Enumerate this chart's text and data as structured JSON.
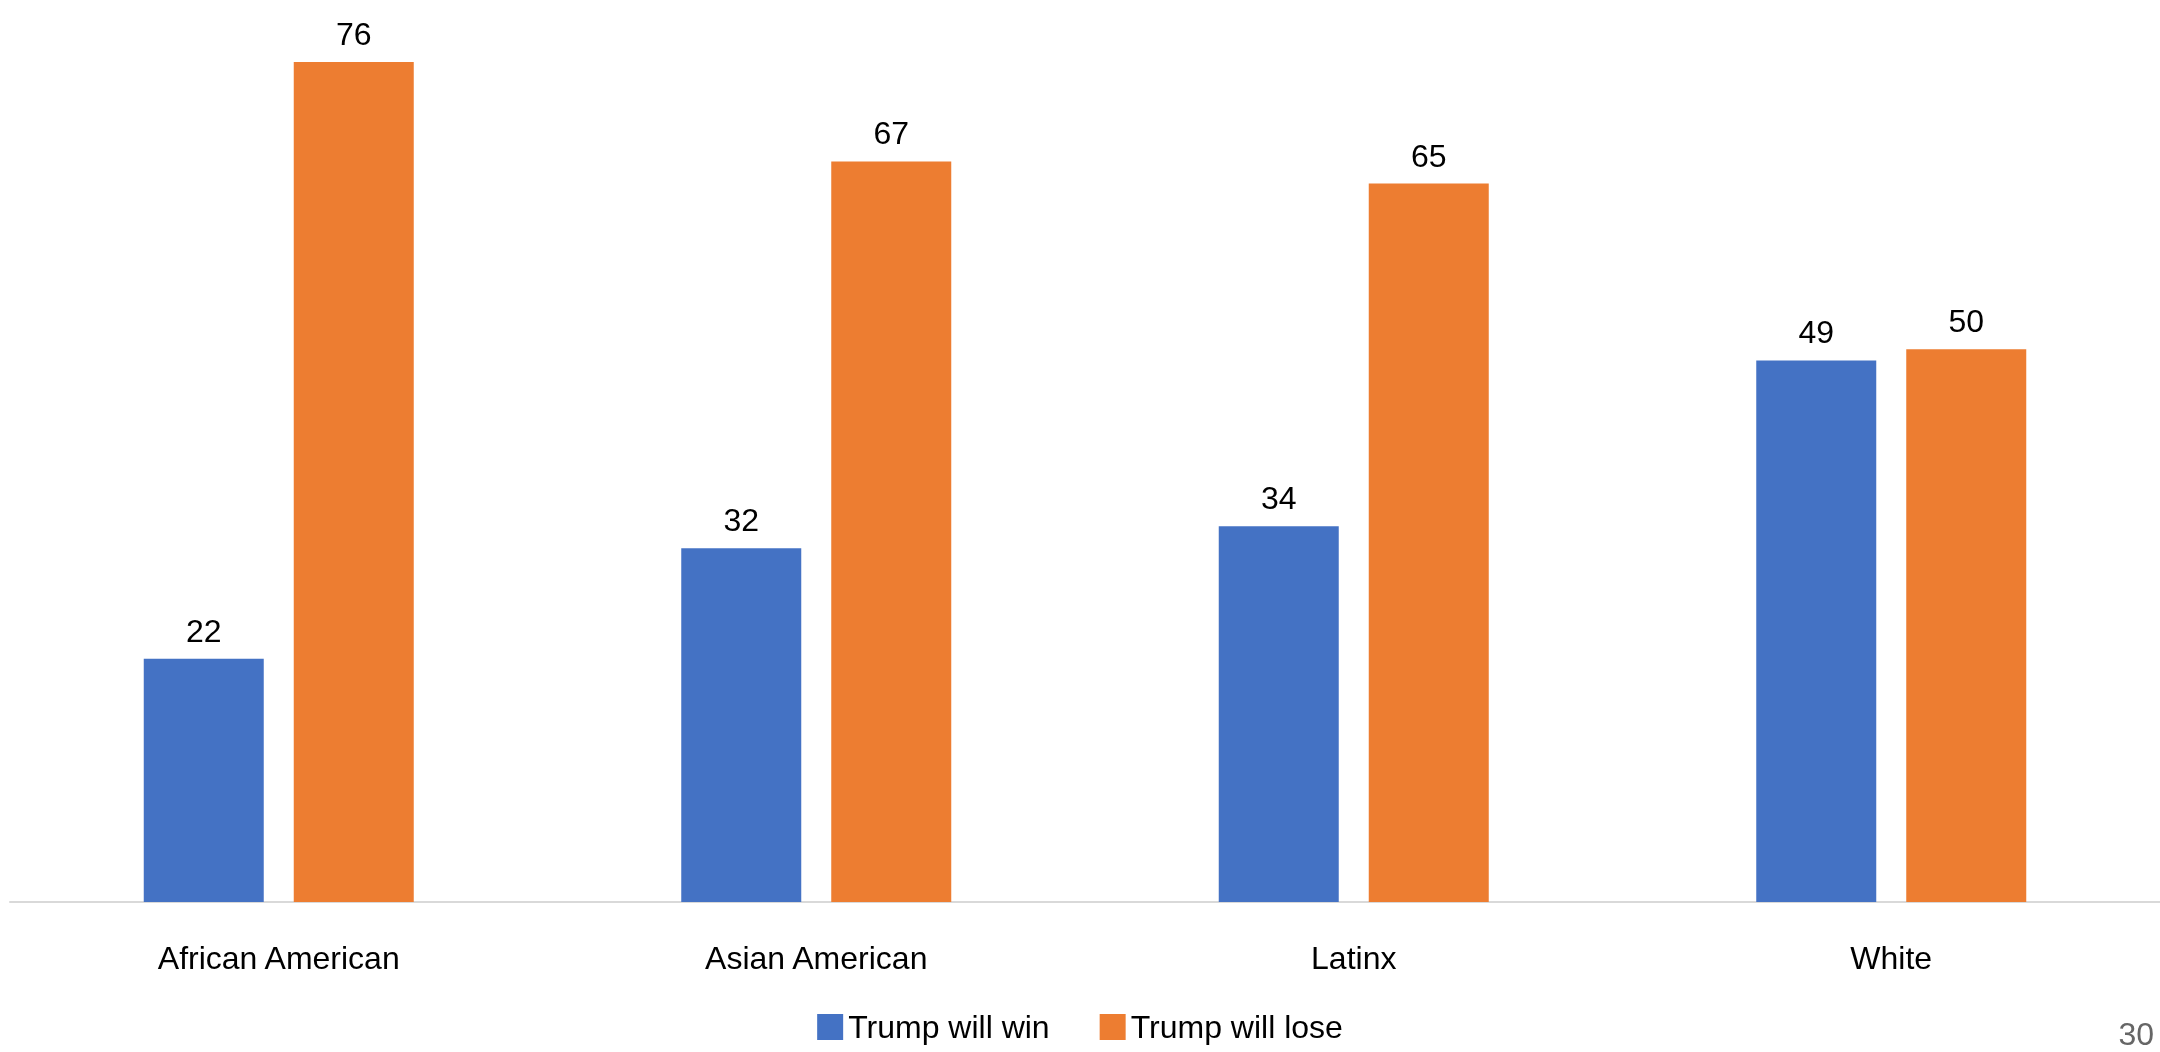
{
  "chart_data": {
    "type": "bar",
    "categories": [
      "African American",
      "Asian American",
      "Latinx",
      "White"
    ],
    "series": [
      {
        "name": "Trump will win",
        "color": "#4472c4",
        "values": [
          22,
          32,
          34,
          49
        ]
      },
      {
        "name": "Trump will lose",
        "color": "#ed7d31",
        "values": [
          76,
          67,
          65,
          50
        ]
      }
    ],
    "data_labels": true,
    "legend": "bottom",
    "annotations": [
      "30"
    ]
  }
}
